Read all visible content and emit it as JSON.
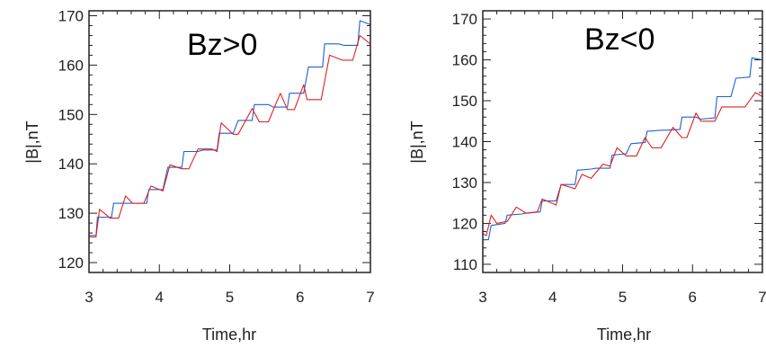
{
  "chart_data": [
    {
      "type": "line",
      "title": "Bz>0",
      "xlabel": "Time,hr",
      "ylabel": "|B|,nT",
      "xlim": [
        3,
        7
      ],
      "ylim": [
        118,
        171
      ],
      "xticks": [
        3,
        4,
        5,
        6,
        7
      ],
      "yticks": [
        120,
        130,
        140,
        150,
        160,
        170
      ],
      "grid": false,
      "series": [
        {
          "color": "#1f5fd6",
          "x": [
            3.0,
            3.1,
            3.12,
            3.32,
            3.35,
            3.55,
            3.62,
            3.82,
            3.85,
            4.05,
            4.12,
            4.32,
            4.35,
            4.55,
            4.62,
            4.82,
            4.85,
            5.05,
            5.12,
            5.32,
            5.35,
            5.55,
            5.62,
            5.82,
            5.85,
            6.05,
            6.12,
            6.32,
            6.35,
            6.55,
            6.62,
            6.82,
            6.85,
            7.0
          ],
          "y": [
            125.5,
            125.5,
            129.2,
            129.2,
            132.0,
            132.0,
            132.0,
            132.0,
            134.8,
            134.8,
            139.3,
            139.3,
            142.5,
            142.5,
            142.8,
            142.8,
            146.2,
            146.2,
            148.8,
            148.8,
            152.0,
            152.0,
            151.5,
            151.5,
            154.3,
            154.3,
            159.6,
            159.6,
            164.3,
            164.3,
            164.0,
            164.0,
            169.0,
            168.2
          ]
        },
        {
          "color": "#e02020",
          "x": [
            3.0,
            3.1,
            3.15,
            3.3,
            3.42,
            3.52,
            3.62,
            3.78,
            3.88,
            4.05,
            4.15,
            4.32,
            4.42,
            4.55,
            4.75,
            4.82,
            4.88,
            5.05,
            5.12,
            5.32,
            5.42,
            5.55,
            5.72,
            5.82,
            5.92,
            6.05,
            6.1,
            6.3,
            6.42,
            6.6,
            6.75,
            6.85,
            6.98,
            7.0
          ],
          "y": [
            125.2,
            125.2,
            130.8,
            129.0,
            129.0,
            133.5,
            132.0,
            132.0,
            135.5,
            134.5,
            139.8,
            139.0,
            139.0,
            143.0,
            143.0,
            142.5,
            148.3,
            146.0,
            146.0,
            151.2,
            148.5,
            148.5,
            154.3,
            151.0,
            151.0,
            156.0,
            153.0,
            153.0,
            162.0,
            161.0,
            161.0,
            166.0,
            164.5,
            164.5
          ]
        }
      ]
    },
    {
      "type": "line",
      "title": "Bz<0",
      "xlabel": "Time,hr",
      "ylabel": "|B|,nT",
      "xlim": [
        3,
        7
      ],
      "ylim": [
        108,
        172
      ],
      "xticks": [
        3,
        4,
        5,
        6,
        7
      ],
      "yticks": [
        110,
        120,
        130,
        140,
        150,
        160,
        170
      ],
      "grid": false,
      "series": [
        {
          "color": "#1f5fd6",
          "x": [
            3.0,
            3.08,
            3.12,
            3.32,
            3.35,
            3.55,
            3.62,
            3.82,
            3.85,
            4.05,
            4.12,
            4.32,
            4.35,
            4.55,
            4.62,
            4.82,
            4.85,
            5.05,
            5.12,
            5.32,
            5.35,
            5.55,
            5.62,
            5.82,
            5.85,
            6.05,
            6.12,
            6.32,
            6.35,
            6.55,
            6.62,
            6.82,
            6.85,
            7.0
          ],
          "y": [
            116.0,
            116.0,
            119.5,
            120.0,
            122.0,
            122.3,
            122.5,
            122.8,
            125.5,
            125.5,
            129.5,
            129.5,
            133.0,
            133.3,
            133.5,
            133.5,
            136.7,
            137.0,
            139.5,
            139.8,
            142.5,
            142.8,
            142.8,
            143.0,
            146.0,
            146.0,
            145.5,
            145.8,
            151.0,
            151.0,
            155.5,
            155.8,
            160.5,
            160.0
          ]
        },
        {
          "color": "#e02020",
          "x": [
            3.0,
            3.05,
            3.12,
            3.2,
            3.35,
            3.48,
            3.62,
            3.78,
            3.85,
            4.05,
            4.12,
            4.32,
            4.42,
            4.55,
            4.72,
            4.82,
            4.92,
            5.05,
            5.2,
            5.32,
            5.42,
            5.55,
            5.72,
            5.85,
            5.92,
            6.05,
            6.12,
            6.32,
            6.42,
            6.55,
            6.75,
            6.9,
            7.0
          ],
          "y": [
            117.5,
            117.0,
            122.0,
            120.0,
            120.5,
            124.0,
            122.5,
            122.8,
            126.0,
            124.5,
            129.5,
            128.5,
            132.0,
            131.0,
            134.5,
            134.0,
            138.5,
            136.5,
            136.5,
            141.0,
            138.5,
            138.5,
            143.5,
            141.0,
            141.0,
            147.0,
            145.0,
            145.0,
            148.5,
            148.5,
            148.5,
            152.0,
            151.0
          ]
        }
      ]
    }
  ]
}
